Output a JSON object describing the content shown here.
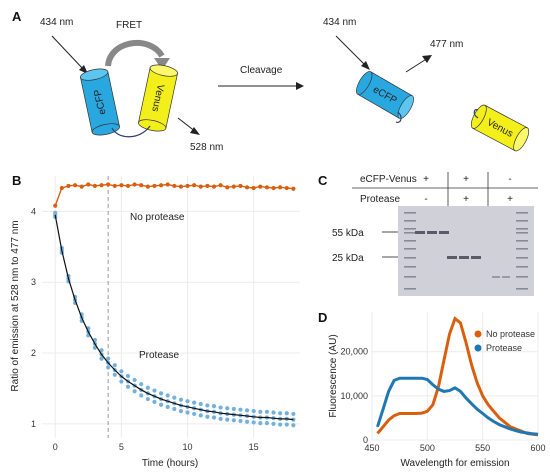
{
  "panels": {
    "a": {
      "label": "A",
      "left": {
        "excitation": "434 nm",
        "fret": "FRET",
        "donor": "eCFP",
        "acceptor": "Venus",
        "emission": "528 nm"
      },
      "arrow_label": "Cleavage",
      "right": {
        "excitation": "434 nm",
        "emission": "477 nm",
        "donor": "eCFP",
        "acceptor": "Venus"
      }
    },
    "b": {
      "label": "B"
    },
    "c": {
      "label": "C",
      "row1_label": "eCFP-Venus",
      "row2_label": "Protease",
      "row1_marks": [
        "+",
        "+",
        "-"
      ],
      "row2_marks": [
        "-",
        "+",
        "+"
      ],
      "marker_high": "55 kDa",
      "marker_low": "25 kDa"
    },
    "d": {
      "label": "D"
    }
  },
  "colors": {
    "no_protease": "#d95f0e",
    "protease_scatter": "#74b0dc",
    "protease_line": "#1f78b4",
    "fit": "#111111",
    "donor_fill": "#29a8e0",
    "acceptor_fill": "#f2ef1a",
    "gel_bg": "#d0d0d8",
    "band": "#5a5a68"
  },
  "chart_data": [
    {
      "panel": "B",
      "type": "scatter",
      "xlabel": "Time (hours)",
      "ylabel": "Ratio of emission at 528 nm to 477 nm",
      "xlim": [
        -1,
        18.5
      ],
      "ylim": [
        0.8,
        4.5
      ],
      "xticks": [
        "0",
        "5",
        "10",
        "15"
      ],
      "yticks": [
        "1",
        "2",
        "3",
        "4"
      ],
      "grid": true,
      "vline_x": 4,
      "annotations": [
        "No protease",
        "Protease"
      ],
      "series": [
        {
          "name": "No protease",
          "x": [
            0,
            0.5,
            1,
            1.5,
            2,
            2.5,
            3,
            3.5,
            4,
            4.5,
            5,
            5.5,
            6,
            6.5,
            7,
            7.5,
            8,
            8.5,
            9,
            9.5,
            10,
            10.5,
            11,
            11.5,
            12,
            12.5,
            13,
            13.5,
            14,
            14.5,
            15,
            15.5,
            16,
            16.5,
            17,
            17.5,
            18
          ],
          "y": [
            4.08,
            4.33,
            4.36,
            4.37,
            4.35,
            4.38,
            4.36,
            4.37,
            4.38,
            4.36,
            4.37,
            4.36,
            4.38,
            4.37,
            4.35,
            4.36,
            4.37,
            4.38,
            4.36,
            4.35,
            4.36,
            4.37,
            4.35,
            4.36,
            4.35,
            4.37,
            4.34,
            4.35,
            4.36,
            4.34,
            4.33,
            4.35,
            4.34,
            4.33,
            4.34,
            4.33,
            4.32
          ]
        },
        {
          "name": "Protease",
          "x": [
            0,
            0.5,
            1,
            1.5,
            2,
            2.5,
            3,
            3.5,
            4,
            4.5,
            5,
            5.5,
            6,
            6.5,
            7,
            7.5,
            8,
            8.5,
            9,
            9.5,
            10,
            10.5,
            11,
            11.5,
            12,
            12.5,
            13,
            13.5,
            14,
            14.5,
            15,
            15.5,
            16,
            16.5,
            17,
            17.5,
            18
          ],
          "y": [
            3.95,
            3.45,
            3.05,
            2.75,
            2.5,
            2.3,
            2.13,
            1.98,
            1.86,
            1.76,
            1.67,
            1.6,
            1.54,
            1.48,
            1.43,
            1.39,
            1.35,
            1.32,
            1.29,
            1.26,
            1.24,
            1.22,
            1.2,
            1.18,
            1.17,
            1.15,
            1.14,
            1.13,
            1.12,
            1.11,
            1.1,
            1.09,
            1.09,
            1.08,
            1.07,
            1.07,
            1.06
          ]
        }
      ]
    },
    {
      "panel": "D",
      "type": "line",
      "xlabel": "Wavelength for emission",
      "ylabel": "Fluorescence (AU)",
      "xlim": [
        450,
        600
      ],
      "ylim": [
        0,
        29000
      ],
      "xticks": [
        "450",
        "500",
        "550",
        "600"
      ],
      "yticks": [
        "0",
        "10,000",
        "20,000"
      ],
      "grid": true,
      "legend": "top-right",
      "x": [
        455,
        460,
        465,
        470,
        475,
        480,
        485,
        490,
        495,
        500,
        505,
        510,
        515,
        520,
        525,
        530,
        535,
        540,
        545,
        550,
        555,
        560,
        565,
        570,
        575,
        580,
        585,
        590,
        595,
        600
      ],
      "series": [
        {
          "name": "No protease",
          "values": [
            1500,
            3000,
            4500,
            5500,
            6000,
            6000,
            6000,
            6000,
            6100,
            6500,
            8000,
            12000,
            18000,
            24000,
            27500,
            26500,
            22000,
            17000,
            13000,
            10000,
            8000,
            6500,
            5000,
            4000,
            3000,
            2500,
            2000,
            1500,
            1300,
            1200
          ]
        },
        {
          "name": "Protease",
          "values": [
            3000,
            7000,
            11000,
            13500,
            14000,
            14000,
            14000,
            14000,
            14000,
            13700,
            12500,
            11500,
            11000,
            11200,
            11800,
            11000,
            9500,
            8200,
            7000,
            6000,
            5000,
            4200,
            3500,
            3000,
            2500,
            2100,
            1800,
            1600,
            1400,
            1300
          ]
        }
      ]
    }
  ]
}
